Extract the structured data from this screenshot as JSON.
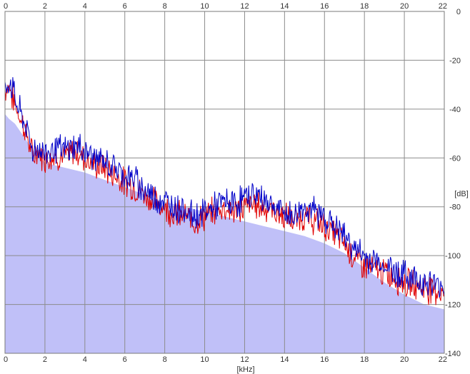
{
  "chart_data": {
    "type": "line",
    "xlabel": "[kHz]",
    "ylabel": "[dB]",
    "xlim": [
      0,
      22
    ],
    "ylim": [
      -140,
      0
    ],
    "x_ticks": [
      0,
      2,
      4,
      6,
      8,
      10,
      12,
      14,
      16,
      18,
      20,
      22
    ],
    "y_ticks": [
      0,
      -20,
      -40,
      -60,
      -80,
      -100,
      -120,
      -140
    ],
    "grid": true,
    "colors": {
      "fill": "#c0c0f8",
      "red": "#e00000",
      "blue": "#0000c8",
      "grid": "#8c8c8c"
    },
    "envelope": {
      "x": [
        0,
        0.2,
        0.5,
        1,
        1.5,
        2,
        3,
        4,
        5,
        6,
        7,
        8,
        9,
        10,
        11,
        12,
        13,
        14,
        15,
        16,
        17,
        18,
        19,
        20,
        21,
        22
      ],
      "y": [
        -42,
        -44,
        -46,
        -52,
        -58,
        -62,
        -64,
        -66,
        -69,
        -72,
        -75,
        -78,
        -80,
        -82,
        -84,
        -86,
        -88,
        -90,
        -92,
        -95,
        -99,
        -105,
        -111,
        -116,
        -120,
        -122
      ]
    },
    "series": [
      {
        "color": "red",
        "x": [
          0,
          0.2,
          0.4,
          0.6,
          0.8,
          1,
          1.2,
          1.4,
          1.6,
          1.8,
          2,
          2.5,
          3,
          3.5,
          4,
          4.5,
          5,
          5.5,
          6,
          6.5,
          7,
          7.5,
          8,
          8.5,
          9,
          9.5,
          10,
          10.5,
          11,
          11.5,
          12,
          12.5,
          13,
          13.5,
          14,
          14.5,
          15,
          15.5,
          16,
          16.5,
          17,
          17.5,
          18,
          18.5,
          19,
          19.5,
          20,
          20.5,
          21,
          21.5,
          22
        ],
        "y": [
          -32,
          -30,
          -36,
          -40,
          -44,
          -48,
          -54,
          -60,
          -57,
          -59,
          -60,
          -59,
          -60,
          -57,
          -60,
          -63,
          -64,
          -67,
          -70,
          -72,
          -75,
          -78,
          -80,
          -83,
          -84,
          -86,
          -84,
          -82,
          -80,
          -82,
          -80,
          -79,
          -80,
          -82,
          -84,
          -86,
          -84,
          -86,
          -88,
          -91,
          -95,
          -101,
          -104,
          -106,
          -107,
          -109,
          -111,
          -112,
          -113,
          -114,
          -115
        ]
      },
      {
        "color": "blue",
        "x": [
          0,
          0.2,
          0.4,
          0.6,
          0.8,
          1,
          1.2,
          1.4,
          1.6,
          1.8,
          2,
          2.5,
          3,
          3.5,
          4,
          4.5,
          5,
          5.5,
          6,
          6.5,
          7,
          7.5,
          8,
          8.5,
          9,
          9.5,
          10,
          10.5,
          11,
          11.5,
          12,
          12.5,
          13,
          13.5,
          14,
          14.5,
          15,
          15.5,
          16,
          16.5,
          17,
          17.5,
          18,
          18.5,
          19,
          19.5,
          20,
          20.5,
          21,
          21.5,
          22
        ],
        "y": [
          -34,
          -28,
          -32,
          -38,
          -42,
          -46,
          -52,
          -57,
          -56,
          -57,
          -58,
          -56,
          -57,
          -55,
          -57,
          -60,
          -62,
          -64,
          -67,
          -69,
          -73,
          -76,
          -78,
          -80,
          -81,
          -84,
          -82,
          -80,
          -78,
          -79,
          -76,
          -75,
          -77,
          -80,
          -83,
          -84,
          -80,
          -82,
          -84,
          -88,
          -92,
          -97,
          -101,
          -102,
          -104,
          -106,
          -108,
          -109,
          -111,
          -112,
          -113
        ]
      }
    ]
  }
}
